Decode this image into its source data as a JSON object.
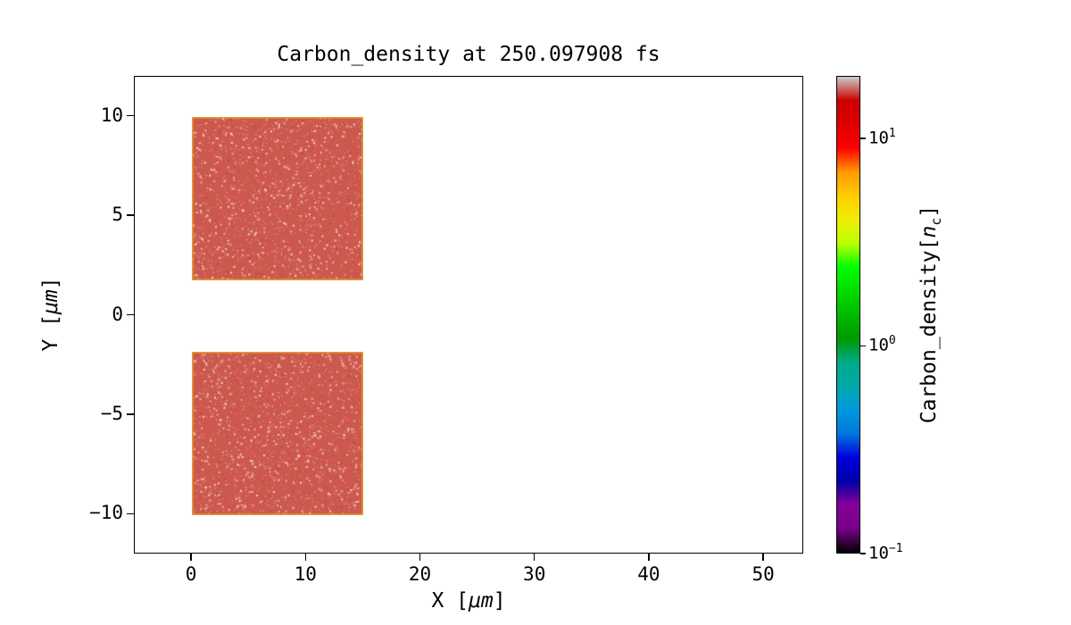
{
  "labels": {
    "x": {
      "pre": "X [",
      "it": "μm",
      "post": "]"
    },
    "y": {
      "pre": "Y [",
      "it": "μm",
      "post": "]"
    },
    "cbar": {
      "pre": "Carbon_density[",
      "it": "n",
      "sub": "c",
      "post": "]"
    }
  },
  "chart_data": {
    "type": "heatmap",
    "title": "Carbon_density at 250.097908 fs",
    "time_fs": "250.097908",
    "xlabel": "X [μm]",
    "ylabel": "Y [μm]",
    "xlim": [
      -5,
      53.5
    ],
    "ylim": [
      -12,
      12
    ],
    "grid": false,
    "x_ticks": {
      "values": [
        0,
        10,
        20,
        30,
        40,
        50
      ],
      "labels": [
        "0",
        "10",
        "20",
        "30",
        "40",
        "50"
      ]
    },
    "y_ticks": {
      "values": [
        -10,
        -5,
        0,
        5,
        10
      ],
      "labels": [
        "−10",
        "−5",
        "0",
        "5",
        "10"
      ]
    },
    "colorbar": {
      "label": "Carbon_density[n_c]",
      "scale": "log",
      "vmin": 0.1,
      "vmax": 20,
      "ticks": [
        {
          "value": 10,
          "base": "10",
          "exp": "1"
        },
        {
          "value": 1,
          "base": "10",
          "exp": "0"
        },
        {
          "value": 0.1,
          "base": "10",
          "exp": "−1"
        }
      ],
      "colormap": "nipy_spectral",
      "stops": [
        [
          0.0,
          "#000000"
        ],
        [
          0.05,
          "#770088"
        ],
        [
          0.1,
          "#880099"
        ],
        [
          0.15,
          "#0000AA"
        ],
        [
          0.2,
          "#0000DD"
        ],
        [
          0.25,
          "#0077DD"
        ],
        [
          0.3,
          "#0099DD"
        ],
        [
          0.35,
          "#00AAAA"
        ],
        [
          0.4,
          "#00AA88"
        ],
        [
          0.45,
          "#009900"
        ],
        [
          0.5,
          "#00BB00"
        ],
        [
          0.55,
          "#00DD00"
        ],
        [
          0.6,
          "#00FF00"
        ],
        [
          0.65,
          "#BBFF00"
        ],
        [
          0.7,
          "#EEEE00"
        ],
        [
          0.75,
          "#FFCC00"
        ],
        [
          0.8,
          "#FF9900"
        ],
        [
          0.85,
          "#FF0000"
        ],
        [
          0.9,
          "#DD0000"
        ],
        [
          0.95,
          "#CC0000"
        ],
        [
          1.0,
          "#CCCCCC"
        ]
      ]
    },
    "regions": [
      {
        "name": "upper-carbon-slab",
        "x_range": [
          0,
          15
        ],
        "y_range": [
          1.8,
          10
        ],
        "approx_density_nc": 7,
        "fill": "#cd584e",
        "edge": "#e5a02e"
      },
      {
        "name": "lower-carbon-slab",
        "x_range": [
          0,
          15
        ],
        "y_range": [
          -10,
          -1.8
        ],
        "approx_density_nc": 7,
        "fill": "#cd584e",
        "edge": "#e5a02e"
      }
    ],
    "speckle_colors": [
      "#e9aea6",
      "#f4d2cc",
      "#c24b42"
    ],
    "background_value": 0,
    "background": "#ffffff"
  }
}
